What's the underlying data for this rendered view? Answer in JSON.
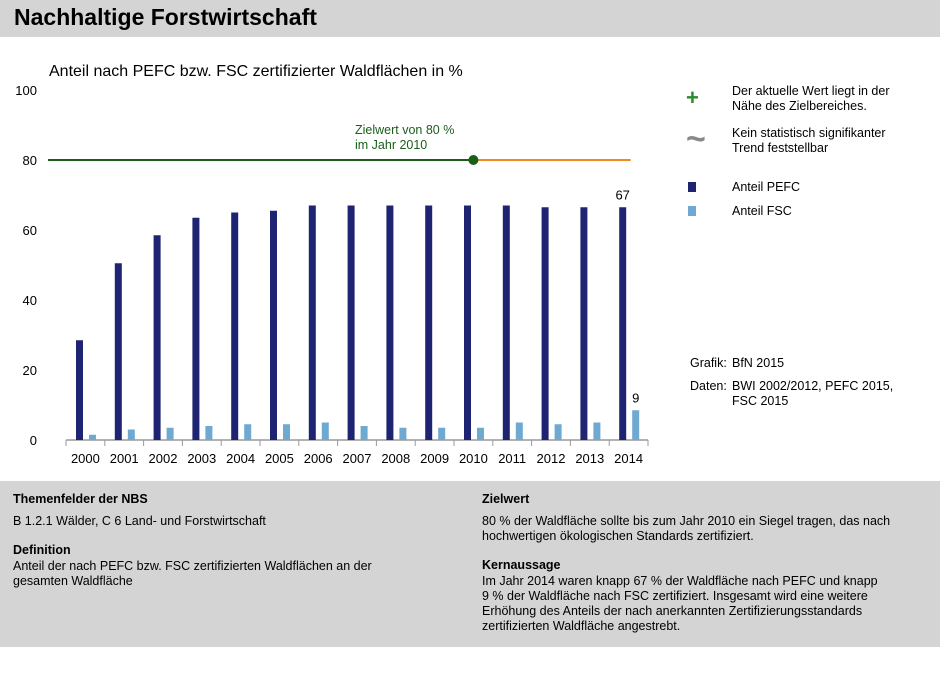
{
  "header": {
    "title": "Nachhaltige Forstwirtschaft"
  },
  "chart_data": {
    "type": "bar",
    "title": "Anteil nach PEFC bzw. FSC zertifizierter Waldflächen in %",
    "xlabel": "",
    "ylabel": "",
    "ylim": [
      0,
      100
    ],
    "yticks": [
      0,
      20,
      40,
      60,
      80,
      100
    ],
    "categories": [
      "2000",
      "2001",
      "2002",
      "2003",
      "2004",
      "2005",
      "2006",
      "2007",
      "2008",
      "2009",
      "2010",
      "2011",
      "2012",
      "2013",
      "2014"
    ],
    "series": [
      {
        "name": "Anteil PEFC",
        "color": "#1f2472",
        "values": [
          28.5,
          50.5,
          58.5,
          63.5,
          65,
          65.5,
          67,
          67,
          67,
          67,
          67,
          67,
          66.5,
          66.5,
          66.5
        ]
      },
      {
        "name": "Anteil FSC",
        "color": "#6fa8d0",
        "values": [
          1.5,
          3,
          3.5,
          4,
          4.5,
          4.5,
          5,
          4,
          3.5,
          3.5,
          3.5,
          5,
          4.5,
          5,
          8.5
        ]
      }
    ],
    "data_labels": [
      {
        "series": "Anteil PEFC",
        "category": "2014",
        "text": "67"
      },
      {
        "series": "Anteil FSC",
        "category": "2014",
        "text": "9"
      }
    ],
    "target": {
      "value": 80,
      "year": "2010",
      "label_line1": "Zielwert von 80 %",
      "label_line2": "im Jahr 2010",
      "color_before": "#1a5e1a",
      "color_after": "#f08a1e"
    },
    "grid": false
  },
  "legend": {
    "plus_symbol": "+",
    "plus_color": "#2a8a2a",
    "plus_text_1": "Der aktuelle Wert liegt in der",
    "plus_text_2": "Nähe des Zielbereiches.",
    "tilde_symbol": "~",
    "tilde_color": "#888888",
    "tilde_text_1": "Kein statistisch signifikanter",
    "tilde_text_2": "Trend feststellbar",
    "pefc_label": "Anteil PEFC",
    "fsc_label": "Anteil FSC"
  },
  "credits": {
    "grafik_label": "Grafik:",
    "grafik_value": "BfN 2015",
    "daten_label": "Daten:",
    "daten_value_1": "BWI 2002/2012, PEFC 2015,",
    "daten_value_2": "FSC 2015"
  },
  "info": {
    "themen_head": "Themenfelder der NBS",
    "themen_text": "B 1.2.1 Wälder, C 6 Land- und Forstwirtschaft",
    "def_head": "Definition",
    "def_text_1": "Anteil der nach PEFC bzw. FSC zertifizierten Waldflächen an der",
    "def_text_2": "gesamten Waldfläche",
    "ziel_head": "Zielwert",
    "ziel_text_1": "80 % der Waldfläche sollte bis zum Jahr 2010 ein Siegel tragen, das nach",
    "ziel_text_2": "hochwertigen ökologischen Standards zertifiziert.",
    "kern_head": "Kernaussage",
    "kern_text_1": "Im Jahr 2014 waren knapp 67 % der Waldfläche nach PEFC und knapp",
    "kern_text_2": "9 % der Waldfläche nach FSC zertifiziert. Insgesamt wird eine weitere",
    "kern_text_3": "Erhöhung des Anteils der nach anerkannten Zertifizierungsstandards",
    "kern_text_4": "zertifizierten Waldfläche angestrebt."
  }
}
